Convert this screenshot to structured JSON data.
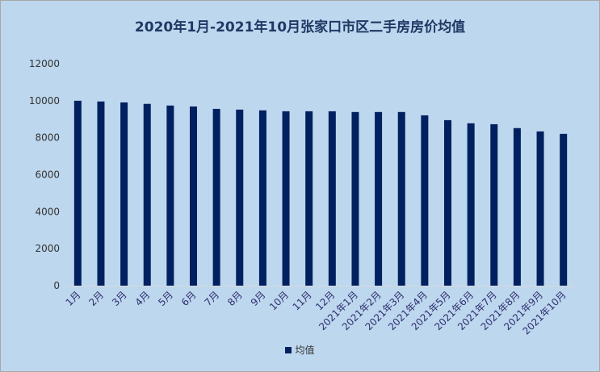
{
  "chart_data": {
    "type": "bar",
    "title": "2020年1月-2021年10月张家口市区二手房房价均值",
    "xlabel": "",
    "ylabel": "",
    "ylim": [
      0,
      12000
    ],
    "yticks": [
      0,
      2000,
      4000,
      6000,
      8000,
      10000,
      12000
    ],
    "grid": false,
    "legend_position": "bottom",
    "categories": [
      "1月",
      "2月",
      "3月",
      "4月",
      "5月",
      "6月",
      "7月",
      "8月",
      "9月",
      "10月",
      "11月",
      "12月",
      "2021年1月",
      "2021年2月",
      "2021年3月",
      "2021年4月",
      "2021年5月",
      "2021年6月",
      "2021年7月",
      "2021年8月",
      "2021年9月",
      "2021年10月"
    ],
    "series": [
      {
        "name": "均值",
        "color": "#002060",
        "values": [
          10000,
          9960,
          9910,
          9830,
          9740,
          9690,
          9560,
          9520,
          9480,
          9430,
          9430,
          9430,
          9390,
          9390,
          9390,
          9210,
          8950,
          8780,
          8730,
          8520,
          8340,
          8210
        ]
      }
    ]
  }
}
